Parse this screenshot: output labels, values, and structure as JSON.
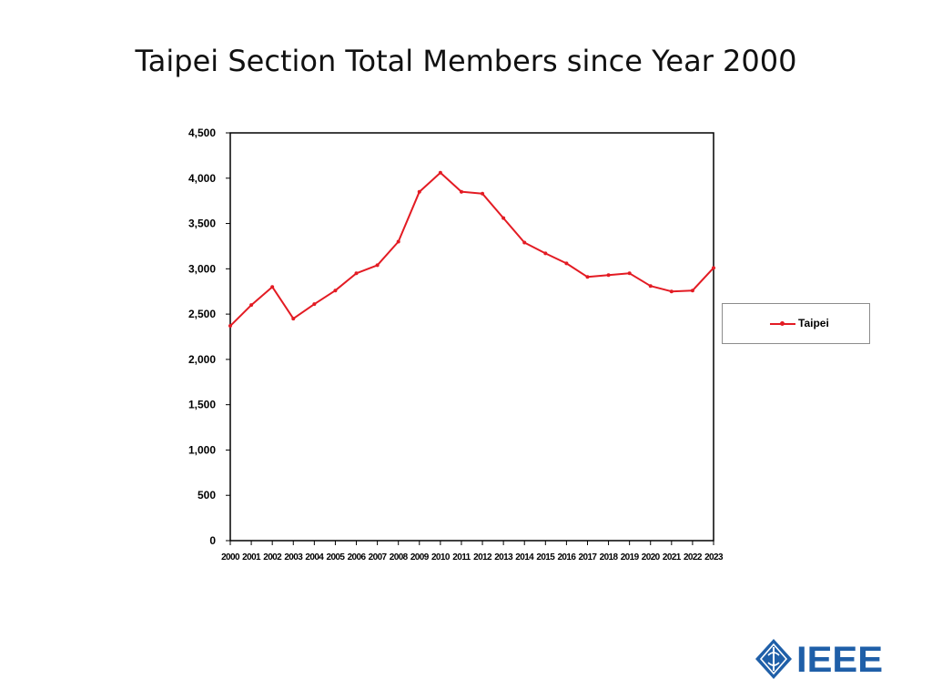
{
  "title": "Taipei Section Total Members since Year 2000",
  "legend": {
    "label": "Taipei"
  },
  "logo": {
    "text": "IEEE"
  },
  "colors": {
    "series": "#e31b23",
    "logo": "#1f5fa8"
  },
  "chart_data": {
    "type": "line",
    "title": "Taipei Section Total Members since Year 2000",
    "xlabel": "",
    "ylabel": "",
    "ylim": [
      0,
      4500
    ],
    "yticks": [
      0,
      500,
      1000,
      1500,
      2000,
      2500,
      3000,
      3500,
      4000,
      4500
    ],
    "ytick_labels": [
      "0",
      "500",
      "1,000",
      "1,500",
      "2,000",
      "2,500",
      "3,000",
      "3,500",
      "4,000",
      "4,500"
    ],
    "categories": [
      "2000",
      "2001",
      "2002",
      "2003",
      "2004",
      "2005",
      "2006",
      "2007",
      "2008",
      "2009",
      "2010",
      "2011",
      "2012",
      "2013",
      "2014",
      "2015",
      "2016",
      "2017",
      "2018",
      "2019",
      "2020",
      "2021",
      "2022",
      "2023"
    ],
    "grid": false,
    "legend_position": "right",
    "series": [
      {
        "name": "Taipei",
        "values": [
          2370,
          2600,
          2800,
          2450,
          2610,
          2760,
          2950,
          3040,
          3300,
          3850,
          4060,
          3850,
          3830,
          3560,
          3290,
          3170,
          3060,
          2910,
          2930,
          2950,
          2810,
          2750,
          2760,
          3010
        ]
      }
    ]
  }
}
